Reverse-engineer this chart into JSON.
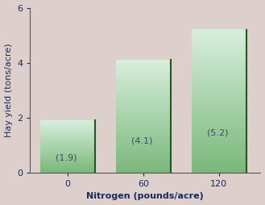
{
  "categories": [
    "0",
    "60",
    "120"
  ],
  "values": [
    1.9,
    4.1,
    5.2
  ],
  "bar_labels": [
    "(1.9)",
    "(4.1)",
    "(5.2)"
  ],
  "xlabel": "Nitrogen (pounds/acre)",
  "ylabel": "Hay yield (tons/acre)",
  "ylim": [
    0,
    6
  ],
  "yticks": [
    0,
    2,
    4,
    6
  ],
  "bar_top_color": "#d8eedd",
  "bar_bottom_color": "#7ab87a",
  "bar_right_edge_color": "#1a5c1a",
  "background_color": "#ddd0cc",
  "axes_background": "#ddd0cc",
  "label_color": "#1a2a5a",
  "xlabel_fontsize": 8,
  "ylabel_fontsize": 8,
  "tick_fontsize": 8,
  "annotation_fontsize": 8,
  "annotation_color": "#3a4a6a",
  "bar_width": 0.72,
  "x_positions": [
    0.5,
    1.5,
    2.5
  ],
  "xlim": [
    0.0,
    3.05
  ]
}
